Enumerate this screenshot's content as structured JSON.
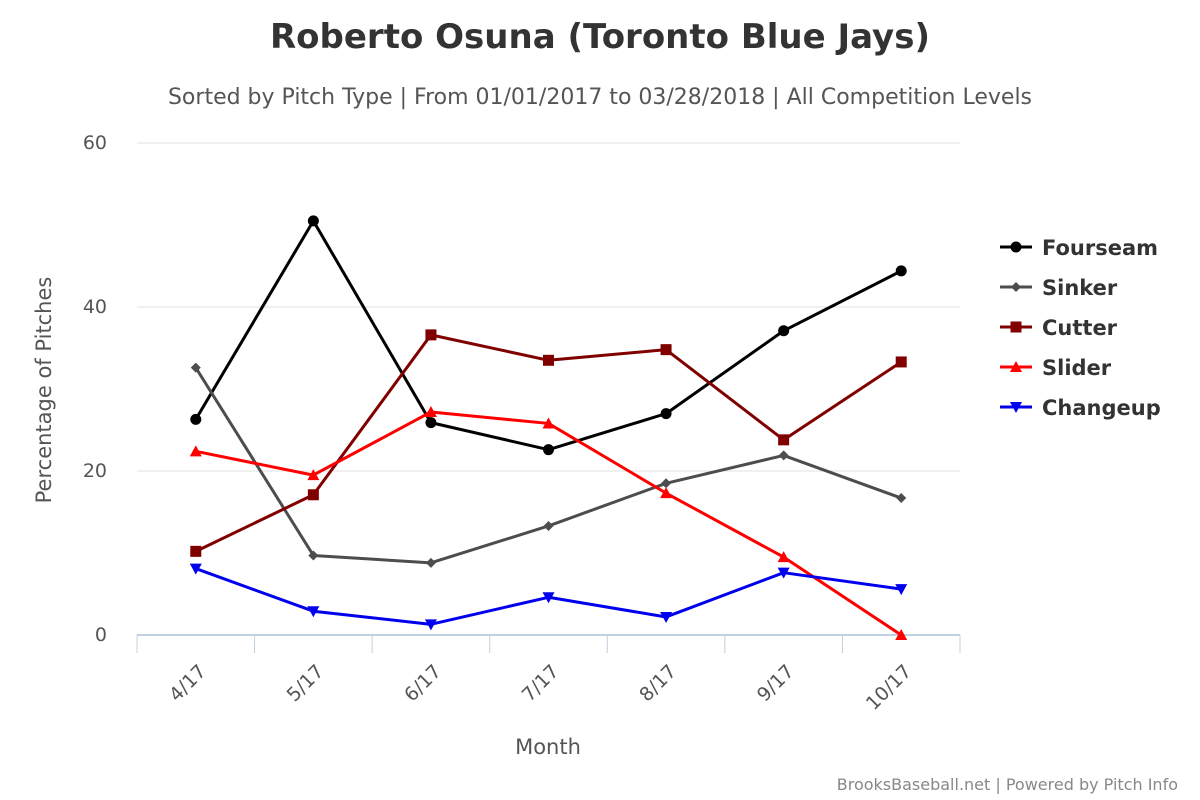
{
  "chart_data": {
    "type": "line",
    "title": "Roberto Osuna (Toronto Blue Jays)",
    "subtitle": "Sorted by Pitch Type | From 01/01/2017 to 03/28/2018 | All Competition Levels",
    "xlabel": "Month",
    "ylabel": "Percentage of Pitches",
    "categories": [
      "4/17",
      "5/17",
      "6/17",
      "7/17",
      "8/17",
      "9/17",
      "10/17"
    ],
    "ylim": [
      0,
      60
    ],
    "yticks": [
      "0",
      "20",
      "40",
      "60"
    ],
    "grid": true,
    "legend_position": "right",
    "credit": "BrooksBaseball.net | Powered by Pitch Info",
    "series": [
      {
        "name": "Fourseam",
        "color": "#000000",
        "marker": "circle",
        "values": [
          26.3,
          50.5,
          25.9,
          22.6,
          27.0,
          37.1,
          44.4
        ]
      },
      {
        "name": "Sinker",
        "color": "#4d4d4d",
        "marker": "diamond",
        "values": [
          32.6,
          9.7,
          8.8,
          13.3,
          18.5,
          21.9,
          16.7
        ]
      },
      {
        "name": "Cutter",
        "color": "#800000",
        "marker": "square",
        "values": [
          10.2,
          17.1,
          36.6,
          33.5,
          34.8,
          23.8,
          33.3
        ]
      },
      {
        "name": "Slider",
        "color": "#ff0000",
        "marker": "triangle",
        "values": [
          22.4,
          19.5,
          27.2,
          25.8,
          17.3,
          9.5,
          0.0
        ]
      },
      {
        "name": "Changeup",
        "color": "#0000ee",
        "marker": "triangle-down",
        "values": [
          8.1,
          2.9,
          1.3,
          4.6,
          2.2,
          7.6,
          5.6
        ]
      }
    ]
  }
}
